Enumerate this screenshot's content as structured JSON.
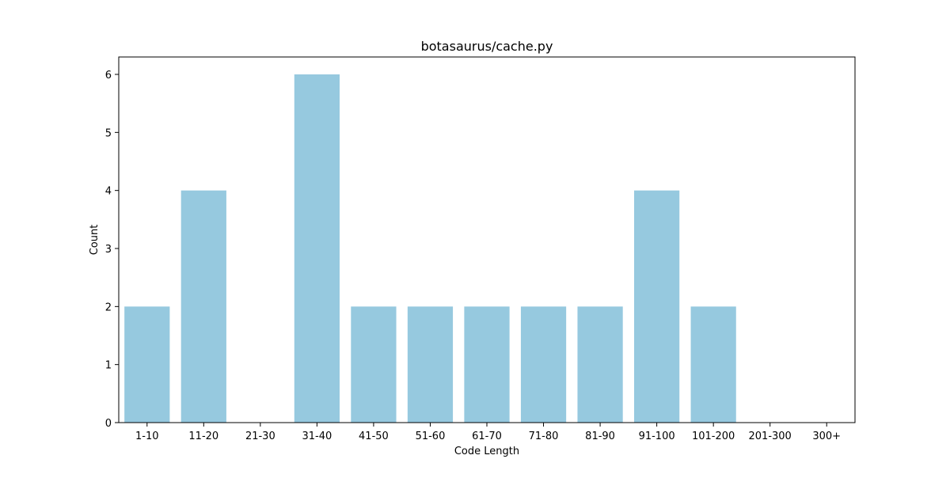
{
  "chart_data": {
    "type": "bar",
    "title": "botasaurus/cache.py",
    "xlabel": "Code Length",
    "ylabel": "Count",
    "categories": [
      "1-10",
      "11-20",
      "21-30",
      "31-40",
      "41-50",
      "51-60",
      "61-70",
      "71-80",
      "81-90",
      "91-100",
      "101-200",
      "201-300",
      "300+"
    ],
    "values": [
      2,
      4,
      0,
      6,
      2,
      2,
      2,
      2,
      2,
      4,
      2,
      0,
      0
    ],
    "ylim": [
      0,
      6.3
    ],
    "yticks": [
      0,
      1,
      2,
      3,
      4,
      5,
      6
    ],
    "bar_color": "#96c9df",
    "grid": false,
    "legend": "none"
  }
}
